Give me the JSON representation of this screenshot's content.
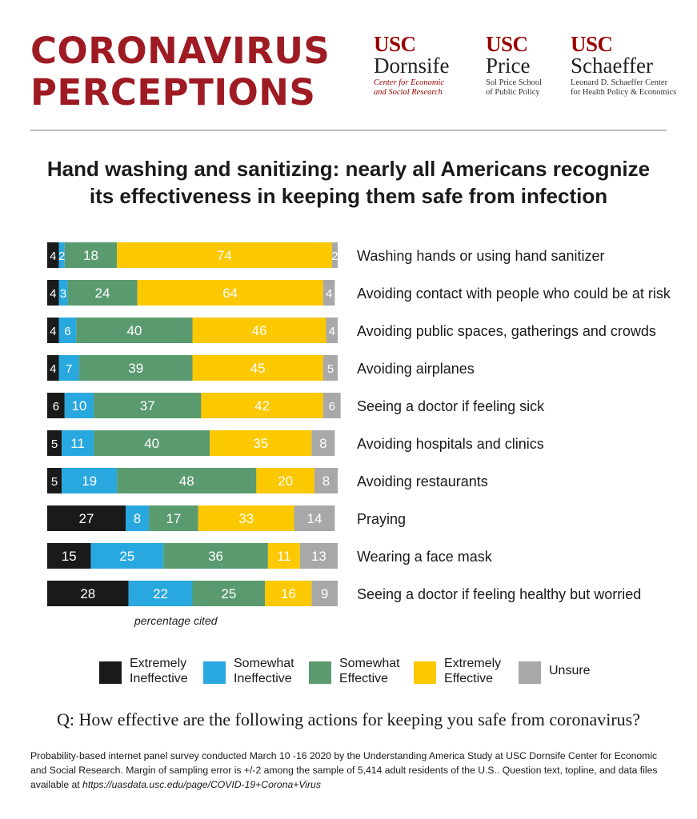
{
  "header": {
    "title_line1": "CORONAVIRUS",
    "title_line2": "PERCEPTIONS"
  },
  "logos": [
    {
      "org": "USC",
      "name": "Dornsife",
      "sub_lines": [
        "Center for Economic",
        "and Social Research"
      ]
    },
    {
      "org": "USC",
      "name": "Price",
      "sub_lines": [
        "Sol Price School",
        "of Public Policy"
      ]
    },
    {
      "org": "USC",
      "name": "Schaeffer",
      "sub_lines": [
        "Leonard D. Schaeffer Center",
        "for Health Policy & Economics"
      ]
    }
  ],
  "subtitle_line1": "Hand washing and sanitizing: nearly all Americans recognize",
  "subtitle_line2": "its effectiveness in keeping them safe from infection",
  "chart_data": {
    "type": "bar",
    "orientation": "horizontal",
    "stacked": true,
    "title": "Hand washing and sanitizing: nearly all Americans recognize its effectiveness in keeping them safe from infection",
    "xlabel": "percentage cited",
    "xlim": [
      0,
      100
    ],
    "grid": false,
    "legend_position": "bottom",
    "categories": [
      "Washing hands or using hand sanitizer",
      "Avoiding contact with people who could be at risk",
      "Avoiding public spaces, gatherings and crowds",
      "Avoiding airplanes",
      "Seeing a doctor if feeling sick",
      "Avoiding hospitals and clinics",
      "Avoiding restaurants",
      "Praying",
      "Wearing a face mask",
      "Seeing a doctor if feeling healthy but worried"
    ],
    "series": [
      {
        "name": "Extremely Ineffective",
        "color": "#1a1a1a",
        "values": [
          4,
          4,
          4,
          4,
          6,
          5,
          5,
          27,
          15,
          28
        ]
      },
      {
        "name": "Somewhat Ineffective",
        "color": "#29a8e0",
        "values": [
          2,
          3,
          6,
          7,
          10,
          11,
          19,
          8,
          25,
          22
        ]
      },
      {
        "name": "Somewhat Effective",
        "color": "#5a9a6f",
        "values": [
          18,
          24,
          40,
          39,
          37,
          40,
          48,
          17,
          36,
          25
        ]
      },
      {
        "name": "Extremely Effective",
        "color": "#fcc800",
        "values": [
          74,
          64,
          46,
          45,
          42,
          35,
          20,
          33,
          11,
          16
        ]
      },
      {
        "name": "Unsure",
        "color": "#a8a8a8",
        "values": [
          2,
          4,
          4,
          5,
          6,
          8,
          8,
          14,
          13,
          9
        ]
      }
    ]
  },
  "legend": [
    {
      "line1": "Extremely",
      "line2": "Ineffective",
      "color": "#1a1a1a"
    },
    {
      "line1": "Somewhat",
      "line2": "Ineffective",
      "color": "#29a8e0"
    },
    {
      "line1": "Somewhat",
      "line2": "Effective",
      "color": "#5a9a6f"
    },
    {
      "line1": "Extremely",
      "line2": "Effective",
      "color": "#fcc800"
    },
    {
      "line1": "Unsure",
      "line2": "",
      "color": "#a8a8a8"
    }
  ],
  "question": "Q: How effective are the following actions for keeping you safe from coronavirus?",
  "footnote": {
    "text": "Probability-based internet panel survey conducted March 10 -16 2020 by the Understanding America Study at USC Dornsife Center for Economic and Social Research. Margin of sampling error is +/-2 among the sample of 5,414 adult residents of the U.S.. Question text, topline, and data files available at ",
    "link": "https://uasdata.usc.edu/page/COVID-19+Corona+Virus"
  }
}
